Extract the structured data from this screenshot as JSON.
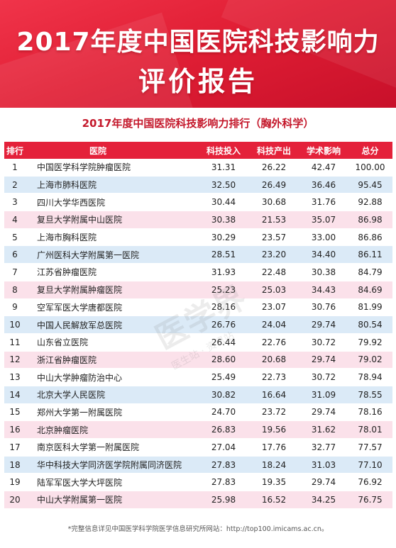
{
  "header": {
    "title_line1": "2017年度中国医院科技影响力",
    "title_line2": "评价报告"
  },
  "subtitle": "2017年度中国医院科技影响力排行（胸外科学）",
  "table": {
    "columns": [
      "排行",
      "医院",
      "科技投入",
      "科技产出",
      "学术影响",
      "总分"
    ],
    "rows": [
      [
        "1",
        "中国医学科学院肿瘤医院",
        "31.31",
        "26.22",
        "42.47",
        "100.00"
      ],
      [
        "2",
        "上海市肺科医院",
        "32.50",
        "26.49",
        "36.46",
        "95.45"
      ],
      [
        "3",
        "四川大学华西医院",
        "30.44",
        "30.68",
        "31.76",
        "92.88"
      ],
      [
        "4",
        "复旦大学附属中山医院",
        "30.38",
        "21.53",
        "35.07",
        "86.98"
      ],
      [
        "5",
        "上海市胸科医院",
        "30.29",
        "23.57",
        "33.00",
        "86.86"
      ],
      [
        "6",
        "广州医科大学附属第一医院",
        "28.51",
        "23.20",
        "34.40",
        "86.11"
      ],
      [
        "7",
        "江苏省肿瘤医院",
        "31.93",
        "22.48",
        "30.38",
        "84.79"
      ],
      [
        "8",
        "复旦大学附属肿瘤医院",
        "25.23",
        "25.03",
        "34.43",
        "84.69"
      ],
      [
        "9",
        "空军军医大学唐都医院",
        "28.16",
        "23.07",
        "30.76",
        "81.99"
      ],
      [
        "10",
        "中国人民解放军总医院",
        "26.76",
        "24.04",
        "29.74",
        "80.54"
      ],
      [
        "11",
        "山东省立医院",
        "26.44",
        "22.76",
        "30.72",
        "79.92"
      ],
      [
        "12",
        "浙江省肿瘤医院",
        "28.60",
        "20.68",
        "29.74",
        "79.02"
      ],
      [
        "13",
        "中山大学肿瘤防治中心",
        "25.49",
        "22.73",
        "30.72",
        "78.94"
      ],
      [
        "14",
        "北京大学人民医院",
        "30.82",
        "16.64",
        "31.09",
        "78.55"
      ],
      [
        "15",
        "郑州大学第一附属医院",
        "24.70",
        "23.72",
        "29.74",
        "78.16"
      ],
      [
        "16",
        "北京肿瘤医院",
        "26.83",
        "19.56",
        "31.62",
        "78.01"
      ],
      [
        "17",
        "南京医科大学第一附属医院",
        "27.04",
        "17.76",
        "32.77",
        "77.57"
      ],
      [
        "18",
        "华中科技大学同济医学院附属同济医院",
        "27.83",
        "18.24",
        "31.03",
        "77.10"
      ],
      [
        "19",
        "陆军军医大学大坪医院",
        "27.83",
        "19.35",
        "29.74",
        "76.92"
      ],
      [
        "20",
        "中山大学附属第一医院",
        "25.98",
        "16.52",
        "34.25",
        "76.75"
      ]
    ]
  },
  "watermark": {
    "main": "医学界",
    "sub": "医生站 · 资讯站"
  },
  "footnote": "*完整信息详见中国医学科学院医学信息研究所网站：http://top100.imicams.ac.cn。",
  "colors": {
    "banner": "#e11f35",
    "header_row": "#e4213a",
    "row_pink": "#fbe1ea",
    "row_blue": "#dbeaf7",
    "subtitle": "#c4182b"
  }
}
